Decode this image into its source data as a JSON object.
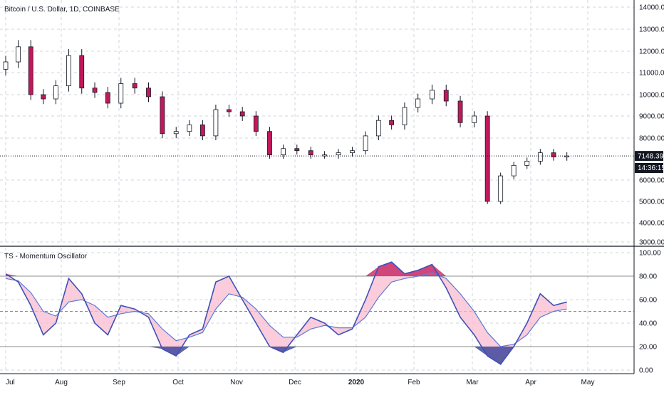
{
  "chart_data": [
    {
      "type": "candlestick",
      "title": "Bitcoin / U.S. Dollar, 1D, COINBASE",
      "ylim": [
        3000,
        14000
      ],
      "y_ticks": [
        "14000.00",
        "13000.00",
        "12000.00",
        "11000.00",
        "10000.00",
        "9000.00",
        "8000.00",
        "6000.00",
        "5000.00",
        "4000.00",
        "3000.00"
      ],
      "x_ticks": [
        "Jul",
        "Aug",
        "Sep",
        "Oct",
        "Nov",
        "Dec",
        "2020",
        "Feb",
        "Mar",
        "Apr",
        "May"
      ],
      "x_start": "2019-07-01",
      "last_price": {
        "label": "7148.39",
        "value": 7148.39
      },
      "countdown": {
        "label": "14:36:15"
      },
      "series": [
        {
          "name": "close",
          "x": [
            "2019-07-01",
            "2019-07-08",
            "2019-07-15",
            "2019-07-22",
            "2019-07-29",
            "2019-08-05",
            "2019-08-12",
            "2019-08-19",
            "2019-08-26",
            "2019-09-02",
            "2019-09-09",
            "2019-09-16",
            "2019-09-23",
            "2019-09-30",
            "2019-10-07",
            "2019-10-14",
            "2019-10-21",
            "2019-10-28",
            "2019-11-04",
            "2019-11-11",
            "2019-11-18",
            "2019-11-25",
            "2019-12-02",
            "2019-12-09",
            "2019-12-16",
            "2019-12-23",
            "2019-12-30",
            "2020-01-06",
            "2020-01-13",
            "2020-01-20",
            "2020-01-27",
            "2020-02-03",
            "2020-02-10",
            "2020-02-17",
            "2020-02-24",
            "2020-03-02",
            "2020-03-09",
            "2020-03-16",
            "2020-03-23",
            "2020-03-30",
            "2020-04-06",
            "2020-04-13",
            "2020-04-20"
          ],
          "values": [
            11500,
            12200,
            10000,
            9800,
            10400,
            11800,
            10300,
            10100,
            9600,
            10500,
            10300,
            9900,
            8200,
            8300,
            8600,
            8100,
            9300,
            9200,
            9000,
            8300,
            7200,
            7500,
            7400,
            7200,
            7200,
            7300,
            7400,
            8100,
            8800,
            8600,
            9400,
            9800,
            10200,
            9700,
            8700,
            9000,
            5000,
            6200,
            6700,
            6900,
            7300,
            7100,
            7148.39
          ]
        }
      ]
    },
    {
      "type": "line",
      "title": "TS - Momentum Oscillator",
      "ylim": [
        0,
        100
      ],
      "y_ticks": [
        "100.00",
        "80.00",
        "60.00",
        "40.00",
        "20.00",
        "0.00"
      ],
      "hlines": [
        80,
        50,
        20
      ],
      "series": [
        {
          "name": "oscillator",
          "x": [
            "2019-07-01",
            "2019-07-08",
            "2019-07-15",
            "2019-07-22",
            "2019-07-29",
            "2019-08-05",
            "2019-08-12",
            "2019-08-19",
            "2019-08-26",
            "2019-09-02",
            "2019-09-09",
            "2019-09-16",
            "2019-09-23",
            "2019-09-30",
            "2019-10-07",
            "2019-10-14",
            "2019-10-21",
            "2019-10-28",
            "2019-11-04",
            "2019-11-11",
            "2019-11-18",
            "2019-11-25",
            "2019-12-02",
            "2019-12-09",
            "2019-12-16",
            "2019-12-23",
            "2019-12-30",
            "2020-01-06",
            "2020-01-13",
            "2020-01-20",
            "2020-01-27",
            "2020-02-03",
            "2020-02-10",
            "2020-02-17",
            "2020-02-24",
            "2020-03-02",
            "2020-03-09",
            "2020-03-16",
            "2020-03-23",
            "2020-03-30",
            "2020-04-06",
            "2020-04-13",
            "2020-04-20"
          ],
          "values": [
            82,
            75,
            55,
            30,
            40,
            78,
            65,
            40,
            30,
            55,
            52,
            45,
            18,
            12,
            30,
            35,
            75,
            80,
            60,
            40,
            20,
            15,
            30,
            45,
            40,
            30,
            35,
            60,
            88,
            92,
            82,
            85,
            90,
            70,
            45,
            30,
            12,
            5,
            20,
            40,
            65,
            55,
            58
          ]
        },
        {
          "name": "signal",
          "x": [
            "2019-07-01",
            "2019-07-08",
            "2019-07-15",
            "2019-07-22",
            "2019-07-29",
            "2019-08-05",
            "2019-08-12",
            "2019-08-19",
            "2019-08-26",
            "2019-09-02",
            "2019-09-09",
            "2019-09-16",
            "2019-09-23",
            "2019-09-30",
            "2019-10-07",
            "2019-10-14",
            "2019-10-21",
            "2019-10-28",
            "2019-11-04",
            "2019-11-11",
            "2019-11-18",
            "2019-11-25",
            "2019-12-02",
            "2019-12-09",
            "2019-12-16",
            "2019-12-23",
            "2019-12-30",
            "2020-01-06",
            "2020-01-13",
            "2020-01-20",
            "2020-01-27",
            "2020-02-03",
            "2020-02-10",
            "2020-02-17",
            "2020-02-24",
            "2020-03-02",
            "2020-03-09",
            "2020-03-16",
            "2020-03-23",
            "2020-03-30",
            "2020-04-06",
            "2020-04-13",
            "2020-04-20"
          ],
          "values": [
            78,
            76,
            66,
            50,
            46,
            58,
            60,
            55,
            45,
            48,
            50,
            48,
            35,
            25,
            28,
            32,
            52,
            65,
            62,
            52,
            38,
            28,
            28,
            35,
            38,
            36,
            36,
            45,
            62,
            75,
            78,
            80,
            83,
            78,
            65,
            50,
            32,
            20,
            22,
            30,
            45,
            50,
            52
          ]
        }
      ]
    }
  ],
  "colors": {
    "up": "#26a69a",
    "down": "#ef5350",
    "candle_body": "#131722",
    "osc_line": "#3f51b5",
    "signal_line": "#5b7bd5",
    "overbought_fill": "#c2185b",
    "oversold_fill": "#283593",
    "band_fill": "#f8bbd0",
    "price_line": "#131722"
  }
}
